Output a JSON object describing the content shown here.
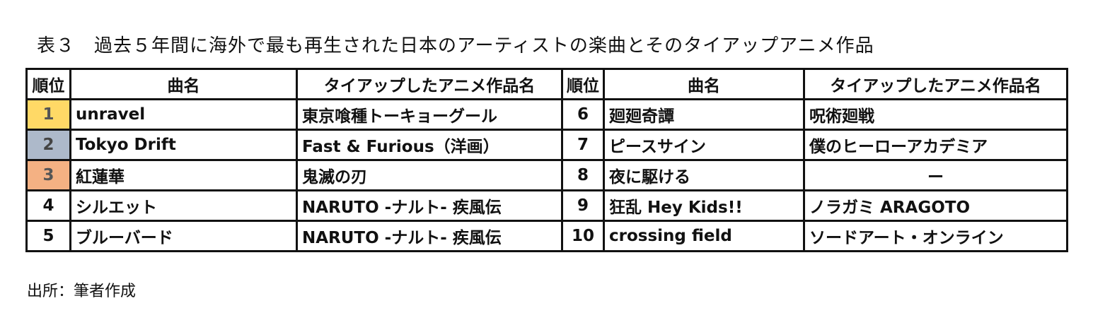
{
  "title": "表３　過去５年間に海外で最も再生された日本のアーティストの楽曲とそのタイアップアニメ作品",
  "headers": [
    "順位",
    "曲名",
    "タイアップしたアニメ作品名",
    "順位",
    "曲名",
    "タイアップしたアニメ作品名"
  ],
  "rows": [
    {
      "rank_l": "1",
      "song_l": "unravel",
      "anime_l": "東京喰種トーキョーグール",
      "rank_r": "6",
      "song_r": "廻廻奇譚",
      "anime_r": "呪術廻戦"
    },
    {
      "rank_l": "2",
      "song_l": "Tokyo Drift",
      "anime_l": "Fast & Furious（洋画）",
      "rank_r": "7",
      "song_r": "ピースサイン",
      "anime_r": "僕のヒーローアカデミア"
    },
    {
      "rank_l": "3",
      "song_l": "紅蓮華",
      "anime_l": "鬼滅の刃",
      "rank_r": "8",
      "song_r": "夜に駆ける",
      "anime_r": "ー"
    },
    {
      "rank_l": "4",
      "song_l": "シルエット",
      "anime_l": "NARUTO -ナルト- 疾風伝",
      "rank_r": "9",
      "song_r": "狂乱 Hey Kids!!",
      "anime_r": "ノラガミ ARAGOTO"
    },
    {
      "rank_l": "5",
      "song_l": "ブルーバード",
      "anime_l": "NARUTO -ナルト- 疾風伝",
      "rank_r": "10",
      "song_r": "crossing field",
      "anime_r": "ソードアート・オンライン"
    }
  ],
  "colors": {
    "rank1": "#FFD966",
    "rank2": "#ADB9CA",
    "rank3": "#F4B183"
  },
  "footer": "出所：筆者作成"
}
